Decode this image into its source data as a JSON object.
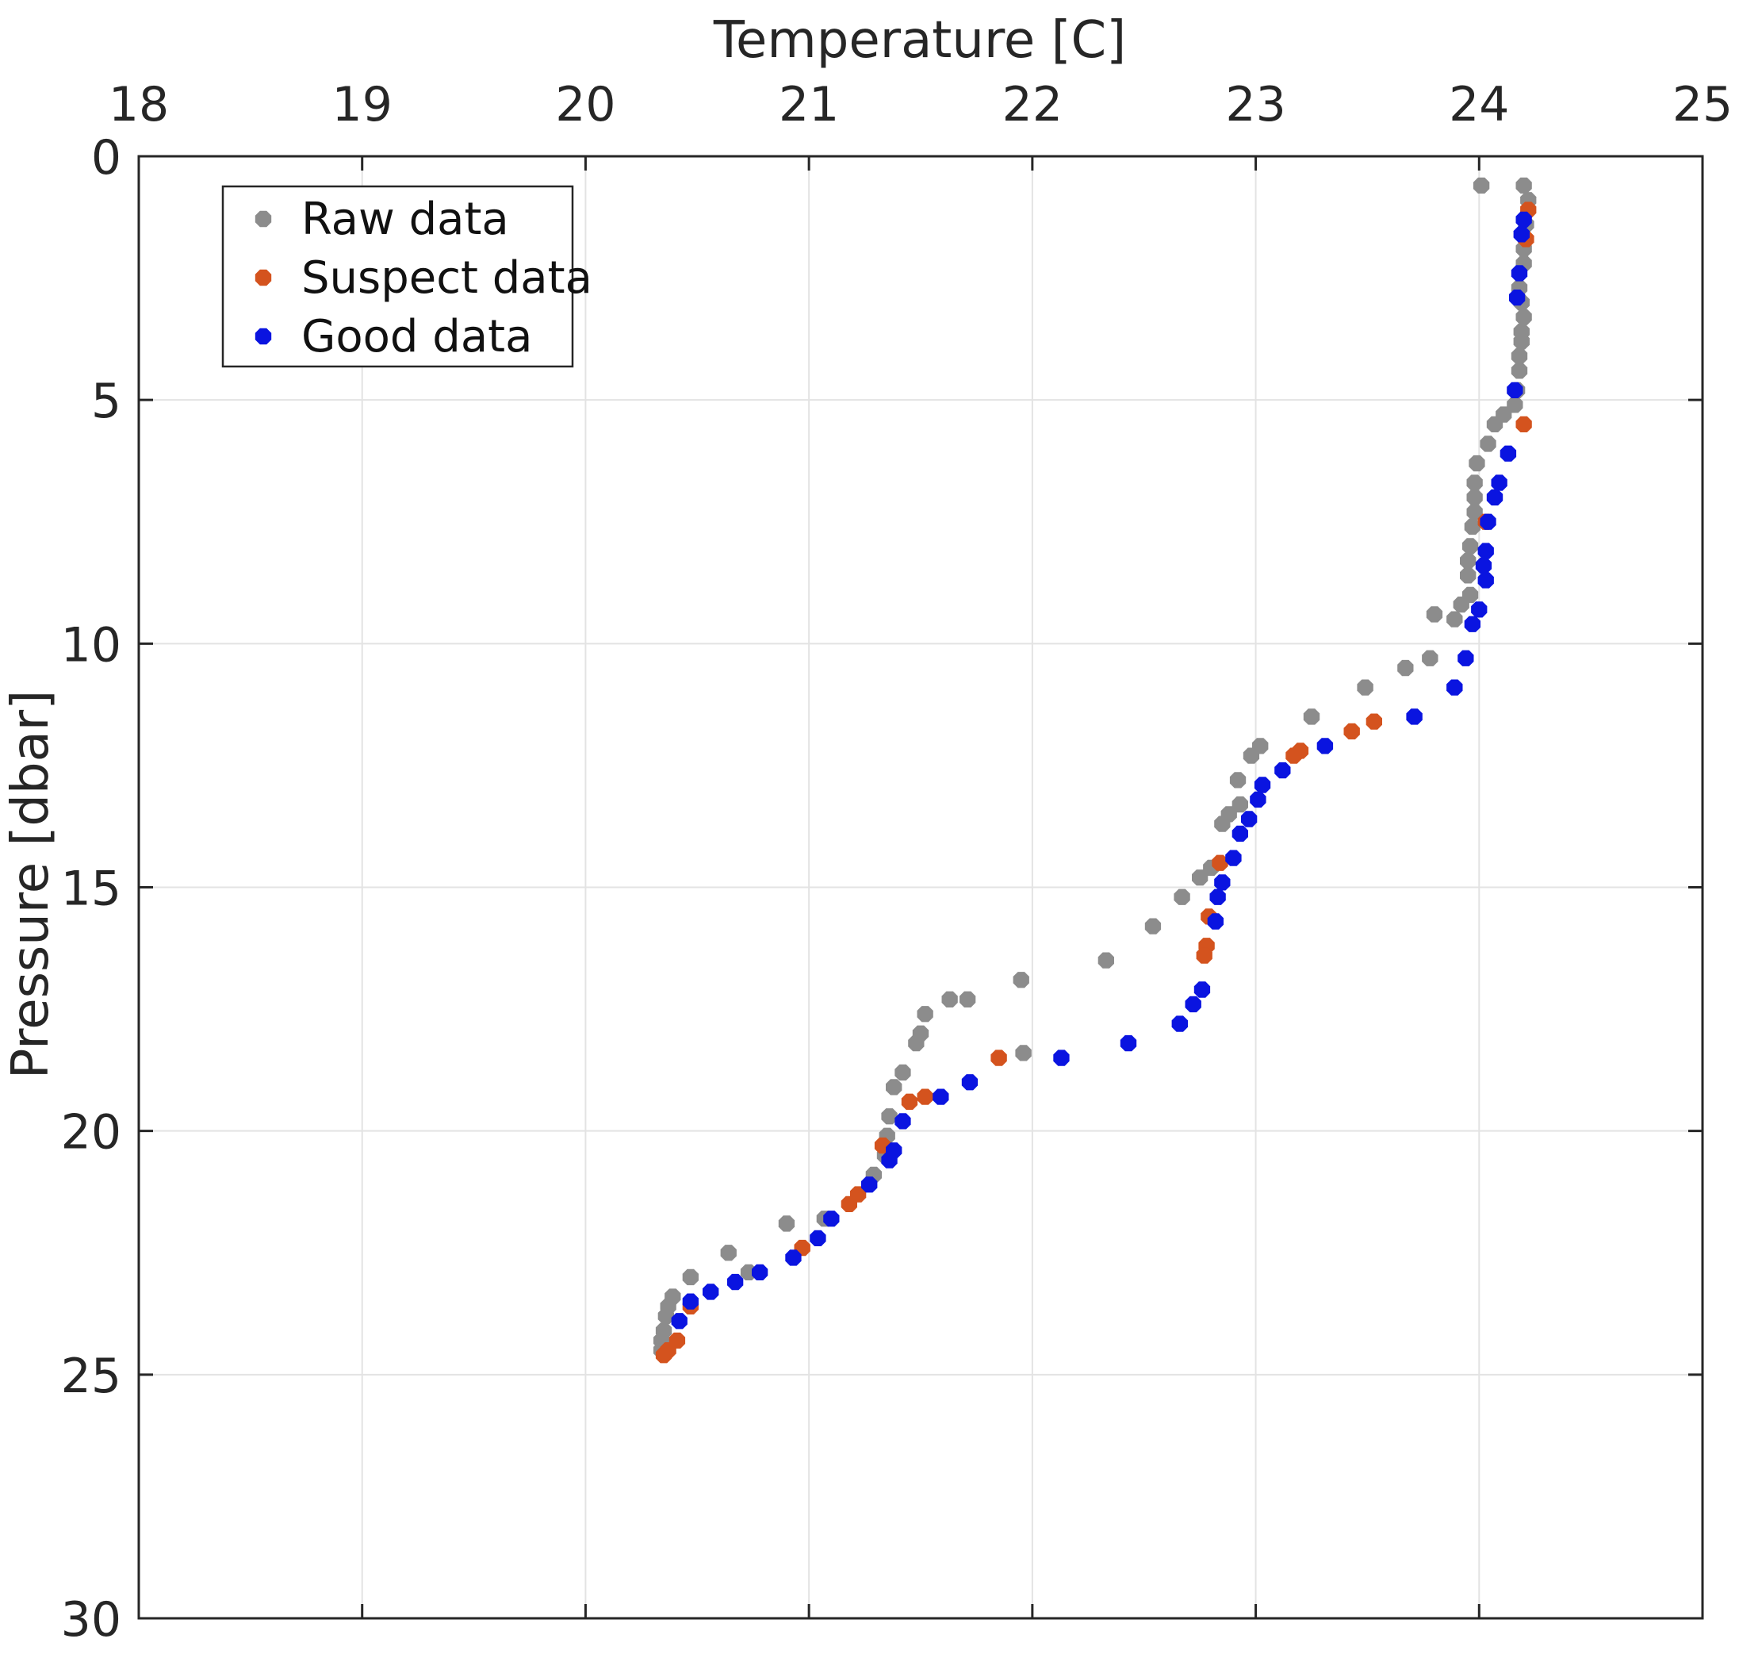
{
  "chart_data": {
    "type": "scatter",
    "title": "",
    "xlabel": "Temperature [C]",
    "ylabel": "Pressure [dbar]",
    "xlim": [
      18,
      25
    ],
    "ylim": [
      0,
      30
    ],
    "y_reversed": true,
    "x_axis_location": "top",
    "grid": true,
    "legend_location": "top-left",
    "xticks": [
      "18",
      "19",
      "20",
      "21",
      "22",
      "23",
      "24",
      "25"
    ],
    "yticks": [
      "0",
      "5",
      "10",
      "15",
      "20",
      "25",
      "30"
    ],
    "colors": {
      "raw": "#8c8c8c",
      "suspect": "#d4531e",
      "good": "#0a14e0",
      "grid": "#e3e3e3",
      "axes": "#262626"
    },
    "series": [
      {
        "name": "Raw data",
        "color_key": "raw",
        "points": [
          [
            24.01,
            0.6
          ],
          [
            24.2,
            0.6
          ],
          [
            24.22,
            0.9
          ],
          [
            24.21,
            1.4
          ],
          [
            24.2,
            1.9
          ],
          [
            24.2,
            2.2
          ],
          [
            24.18,
            2.7
          ],
          [
            24.19,
            3.0
          ],
          [
            24.2,
            3.3
          ],
          [
            24.19,
            3.6
          ],
          [
            24.19,
            3.8
          ],
          [
            24.18,
            4.1
          ],
          [
            24.18,
            4.4
          ],
          [
            24.17,
            4.8
          ],
          [
            24.16,
            5.1
          ],
          [
            24.11,
            5.3
          ],
          [
            24.07,
            5.5
          ],
          [
            24.04,
            5.9
          ],
          [
            23.99,
            6.3
          ],
          [
            23.98,
            6.7
          ],
          [
            23.98,
            7.0
          ],
          [
            23.98,
            7.3
          ],
          [
            23.97,
            7.6
          ],
          [
            23.96,
            8.0
          ],
          [
            23.95,
            8.3
          ],
          [
            23.95,
            8.6
          ],
          [
            23.96,
            9.0
          ],
          [
            23.92,
            9.2
          ],
          [
            23.8,
            9.4
          ],
          [
            23.89,
            9.5
          ],
          [
            23.78,
            10.3
          ],
          [
            23.67,
            10.5
          ],
          [
            23.49,
            10.9
          ],
          [
            23.25,
            11.5
          ],
          [
            23.02,
            12.1
          ],
          [
            22.98,
            12.3
          ],
          [
            22.92,
            12.8
          ],
          [
            22.93,
            13.3
          ],
          [
            22.88,
            13.5
          ],
          [
            22.85,
            13.7
          ],
          [
            22.8,
            14.6
          ],
          [
            22.75,
            14.8
          ],
          [
            22.67,
            15.2
          ],
          [
            22.54,
            15.8
          ],
          [
            22.33,
            16.5
          ],
          [
            21.95,
            16.9
          ],
          [
            21.71,
            17.3
          ],
          [
            21.63,
            17.3
          ],
          [
            21.52,
            17.6
          ],
          [
            21.5,
            18.0
          ],
          [
            21.48,
            18.2
          ],
          [
            21.96,
            18.4
          ],
          [
            21.42,
            18.8
          ],
          [
            21.38,
            19.1
          ],
          [
            21.36,
            19.7
          ],
          [
            21.35,
            20.1
          ],
          [
            21.34,
            20.5
          ],
          [
            21.29,
            20.9
          ],
          [
            21.07,
            21.8
          ],
          [
            20.9,
            21.9
          ],
          [
            20.64,
            22.5
          ],
          [
            20.73,
            22.9
          ],
          [
            20.47,
            23.0
          ],
          [
            20.39,
            23.4
          ],
          [
            20.37,
            23.6
          ],
          [
            20.36,
            23.8
          ],
          [
            20.35,
            24.1
          ],
          [
            20.34,
            24.3
          ],
          [
            20.34,
            24.5
          ]
        ]
      },
      {
        "name": "Suspect data",
        "color_key": "suspect",
        "points": [
          [
            24.22,
            1.1
          ],
          [
            24.21,
            1.7
          ],
          [
            24.2,
            5.5
          ],
          [
            24.03,
            7.5
          ],
          [
            23.53,
            11.6
          ],
          [
            23.43,
            11.8
          ],
          [
            23.2,
            12.2
          ],
          [
            23.17,
            12.3
          ],
          [
            22.84,
            14.5
          ],
          [
            22.79,
            15.6
          ],
          [
            22.78,
            16.2
          ],
          [
            22.77,
            16.4
          ],
          [
            21.85,
            18.5
          ],
          [
            21.52,
            19.3
          ],
          [
            21.45,
            19.4
          ],
          [
            21.33,
            20.3
          ],
          [
            21.22,
            21.3
          ],
          [
            21.18,
            21.5
          ],
          [
            20.97,
            22.4
          ],
          [
            20.47,
            23.6
          ],
          [
            20.41,
            24.3
          ],
          [
            20.37,
            24.5
          ],
          [
            20.35,
            24.6
          ]
        ]
      },
      {
        "name": "Good data",
        "color_key": "good",
        "points": [
          [
            24.2,
            1.3
          ],
          [
            24.19,
            1.6
          ],
          [
            24.18,
            2.4
          ],
          [
            24.17,
            2.9
          ],
          [
            24.16,
            4.8
          ],
          [
            24.13,
            6.1
          ],
          [
            24.09,
            6.7
          ],
          [
            24.07,
            7.0
          ],
          [
            24.04,
            7.5
          ],
          [
            24.03,
            8.1
          ],
          [
            24.02,
            8.4
          ],
          [
            24.03,
            8.7
          ],
          [
            24.0,
            9.3
          ],
          [
            23.97,
            9.6
          ],
          [
            23.94,
            10.3
          ],
          [
            23.89,
            10.9
          ],
          [
            23.71,
            11.5
          ],
          [
            23.31,
            12.1
          ],
          [
            23.12,
            12.6
          ],
          [
            23.03,
            12.9
          ],
          [
            23.01,
            13.2
          ],
          [
            22.97,
            13.6
          ],
          [
            22.93,
            13.9
          ],
          [
            22.9,
            14.4
          ],
          [
            22.85,
            14.9
          ],
          [
            22.83,
            15.2
          ],
          [
            22.82,
            15.7
          ],
          [
            22.76,
            17.1
          ],
          [
            22.72,
            17.4
          ],
          [
            22.66,
            17.8
          ],
          [
            22.43,
            18.2
          ],
          [
            22.13,
            18.5
          ],
          [
            21.72,
            19.0
          ],
          [
            21.59,
            19.3
          ],
          [
            21.42,
            19.8
          ],
          [
            21.38,
            20.4
          ],
          [
            21.36,
            20.6
          ],
          [
            21.27,
            21.1
          ],
          [
            21.1,
            21.8
          ],
          [
            21.04,
            22.2
          ],
          [
            20.93,
            22.6
          ],
          [
            20.78,
            22.9
          ],
          [
            20.67,
            23.1
          ],
          [
            20.56,
            23.3
          ],
          [
            20.47,
            23.5
          ],
          [
            20.42,
            23.9
          ]
        ]
      }
    ]
  }
}
